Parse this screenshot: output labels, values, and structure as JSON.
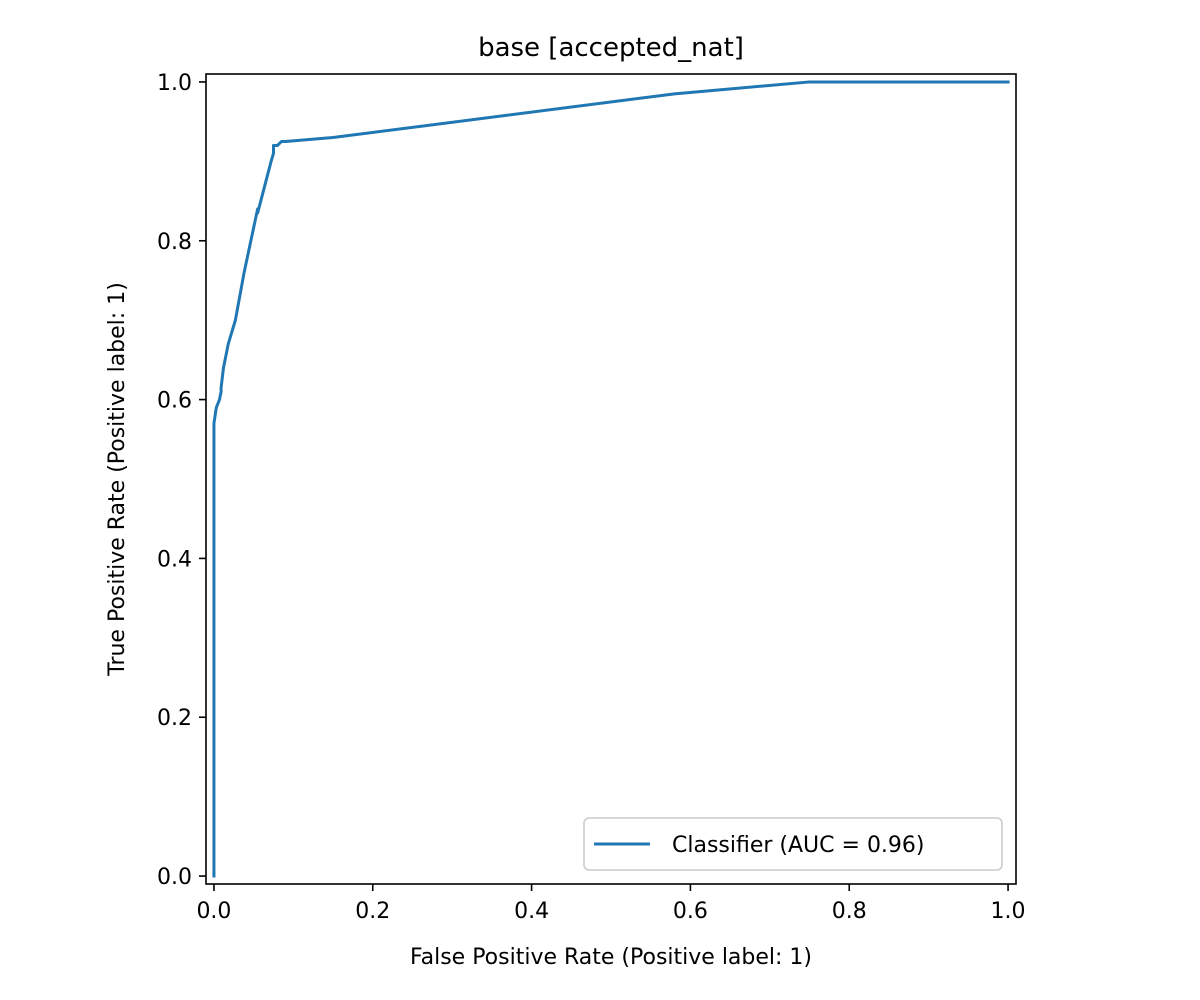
{
  "chart_data": {
    "type": "line",
    "title": "base [accepted_nat]",
    "xlabel": "False Positive Rate (Positive label: 1)",
    "ylabel": "True Positive Rate (Positive label: 1)",
    "xlim": [
      -0.01,
      1.01
    ],
    "ylim": [
      -0.01,
      1.01
    ],
    "xticks": [
      0.0,
      0.2,
      0.4,
      0.6,
      0.8,
      1.0
    ],
    "xtick_labels": [
      "0.0",
      "0.2",
      "0.4",
      "0.6",
      "0.8",
      "1.0"
    ],
    "yticks": [
      0.0,
      0.2,
      0.4,
      0.6,
      0.8,
      1.0
    ],
    "ytick_labels": [
      "0.0",
      "0.2",
      "0.4",
      "0.6",
      "0.8",
      "1.0"
    ],
    "grid": false,
    "legend_position": "lower-right",
    "series": [
      {
        "name": "Classifier (AUC = 0.96)",
        "color": "#1f77b4",
        "x": [
          0.0,
          0.0,
          0.0,
          0.003,
          0.007,
          0.009,
          0.009,
          0.012,
          0.018,
          0.027,
          0.038,
          0.055,
          0.055,
          0.072,
          0.075,
          0.075,
          0.08,
          0.085,
          0.09,
          0.15,
          0.58,
          0.75,
          1.0
        ],
        "y": [
          0.0,
          0.55,
          0.57,
          0.59,
          0.6,
          0.61,
          0.615,
          0.64,
          0.67,
          0.7,
          0.76,
          0.84,
          0.835,
          0.9,
          0.91,
          0.92,
          0.92,
          0.925,
          0.925,
          0.93,
          0.985,
          1.0,
          1.0
        ]
      }
    ]
  }
}
